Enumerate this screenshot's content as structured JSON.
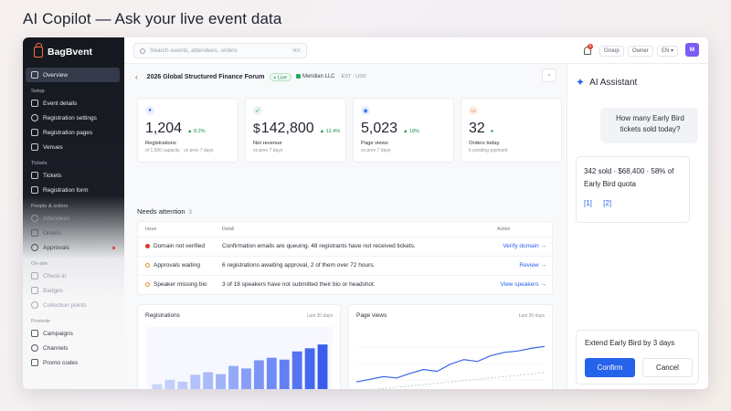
{
  "headline": "AI Copilot — Ask your live event data",
  "brand": {
    "name": "BagBvent"
  },
  "sidebar": {
    "overview": "Overview",
    "sections": [
      {
        "title": "Setup",
        "items": [
          "Event details",
          "Registration settings",
          "Registration pages",
          "Venues"
        ]
      },
      {
        "title": "Tickets",
        "items": [
          "Tickets",
          "Registration form"
        ]
      },
      {
        "title": "People & orders",
        "items": [
          "Attendees",
          "Orders",
          "Approvals"
        ]
      },
      {
        "title": "On-site",
        "items": [
          "Check-in",
          "Badges",
          "Collection points"
        ]
      },
      {
        "title": "Promote",
        "items": [
          "Campaigns",
          "Channels",
          "Promo codes"
        ]
      }
    ]
  },
  "topbar": {
    "search_placeholder": "Search events, attendees, orders",
    "shortcut": "⌘K",
    "notifications": "5",
    "group": "Group",
    "owner": "Owner",
    "lang": "EN ▾",
    "avatar": "M"
  },
  "event": {
    "name": "2026 Global Structured Finance Forum",
    "status": "Live",
    "org": "Meridian LLC",
    "meta": "EST · USD"
  },
  "stats": [
    {
      "value": "1,204",
      "delta": "▲ 8.2%",
      "label": "Registrations",
      "sub": "of 1,500 capacity · vs prev 7 days",
      "icon": "user-icon",
      "color": "#2563eb",
      "bg": "#e9efff"
    },
    {
      "currency": "$",
      "value": "142,800",
      "delta": "▲ 12.4%",
      "label": "Net revenue",
      "sub": "vs prev 7 days",
      "icon": "check-circle-icon",
      "color": "#1d8f4e",
      "bg": "#e6f6ec"
    },
    {
      "value": "5,023",
      "delta": "▲ 18%",
      "label": "Page views",
      "sub": "vs prev 7 days",
      "icon": "eye-icon",
      "color": "#2563eb",
      "bg": "#e9efff"
    },
    {
      "value": "32",
      "delta": "●",
      "label": "Orders today",
      "sub": "6 pending payment",
      "icon": "order-icon",
      "color": "#e06a23",
      "bg": "#fdeee3"
    }
  ],
  "needs": {
    "title": "Needs attention",
    "count": "3"
  },
  "issues": {
    "headers": [
      "Issue",
      "Detail",
      "Action"
    ],
    "rows": [
      {
        "issue": "Domain not verified",
        "detail": "Confirmation emails are queuing. 48 registrants have not received tickets.",
        "action": "Verify domain →",
        "severity": "high"
      },
      {
        "issue": "Approvals waiting",
        "detail": "6 registrations awaiting approval, 2 of them over 72 hours.",
        "action": "Review →",
        "severity": "medium"
      },
      {
        "issue": "Speaker missing bio",
        "detail": "3 of 18 speakers have not submitted their bio or headshot.",
        "action": "View speakers →",
        "severity": "medium"
      }
    ]
  },
  "charts": {
    "registrations": {
      "title": "Registrations",
      "range": "Last 30 days"
    },
    "pageviews": {
      "title": "Page views",
      "range": "Last 30 days"
    }
  },
  "chart_data": [
    {
      "type": "bar",
      "title": "Registrations",
      "values": [
        15,
        22,
        19,
        30,
        34,
        31,
        44,
        40,
        53,
        57,
        54,
        67,
        72,
        78
      ],
      "ylim": [
        0,
        100
      ]
    },
    {
      "type": "line",
      "title": "Page views",
      "series": [
        {
          "values": [
            22,
            26,
            30,
            28,
            35,
            41,
            38,
            49,
            56,
            53,
            62,
            67,
            69,
            73,
            76
          ]
        },
        {
          "values": [
            8,
            10,
            12,
            14,
            16,
            18,
            20,
            22,
            24,
            26,
            28,
            30,
            32,
            34,
            36
          ],
          "style": "dashed"
        }
      ],
      "ylim": [
        0,
        100
      ]
    }
  ],
  "assistant": {
    "title": "AI Assistant",
    "question": "How many Early Bird tickets sold today?",
    "answer": "342 sold · $68,400 · 58% of Early Bird quota",
    "citations": [
      "[1]",
      "[2]"
    ],
    "proposal": "Extend Early Bird by 3 days",
    "confirm": "Confirm",
    "cancel": "Cancel"
  }
}
